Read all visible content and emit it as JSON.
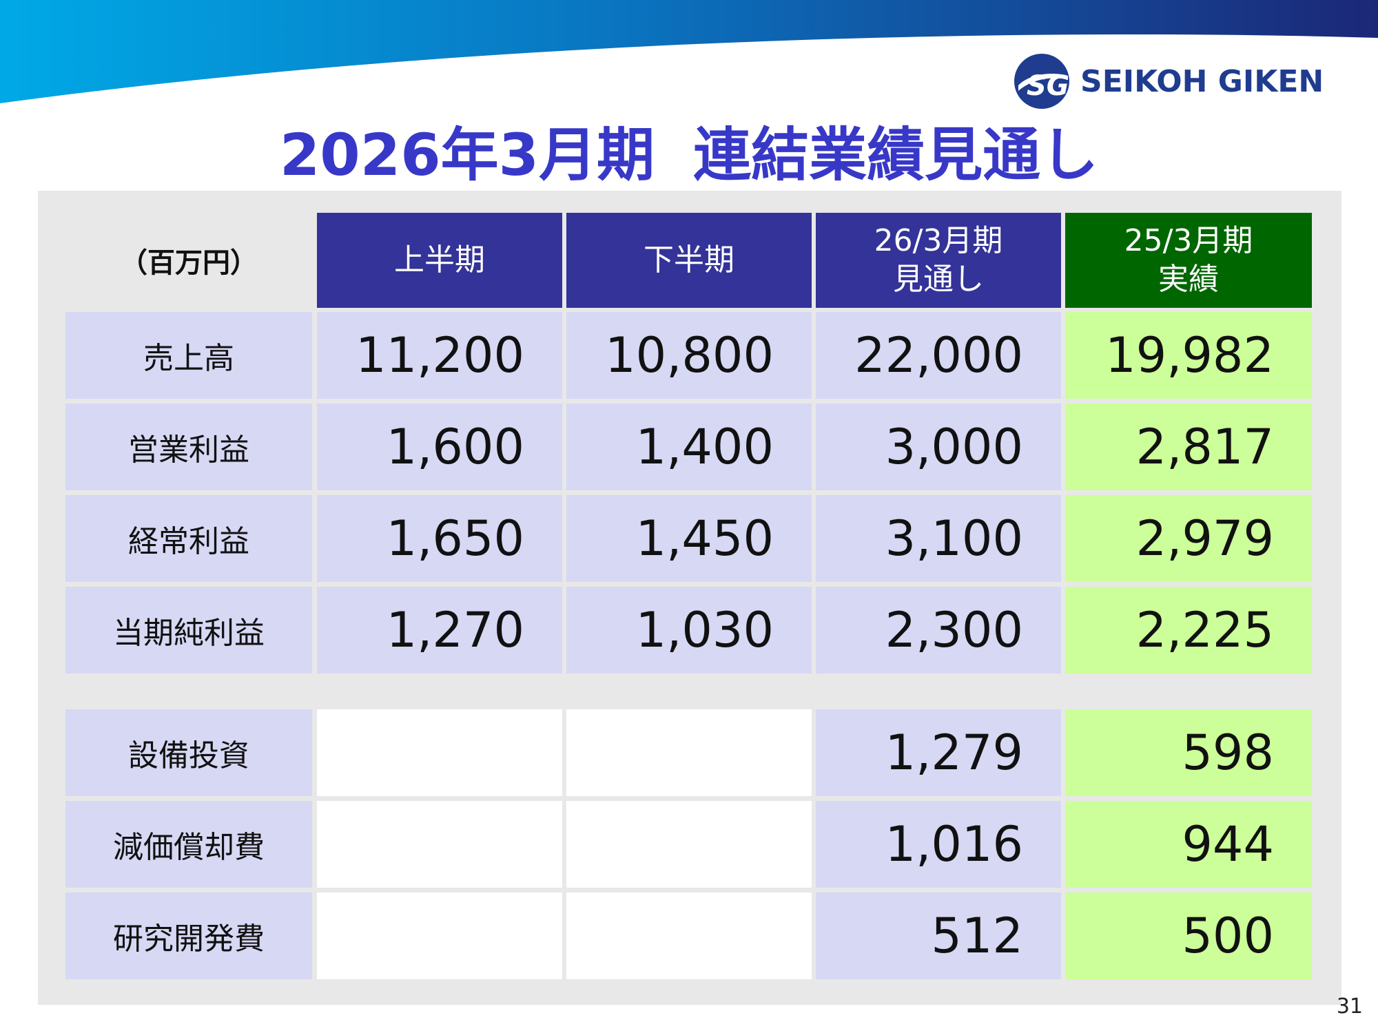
{
  "slide": {
    "title_part1": "2026年3月期",
    "title_part2": "連結業績見通し",
    "page_number": "31"
  },
  "logo": {
    "text": "SEIKOH GIKEN",
    "mark_letters": "SG",
    "colors": {
      "mark": "#1f3c8f",
      "accent": "#1e8fd6",
      "text": "#1f3c8f"
    }
  },
  "table": {
    "unit": "（百万円）",
    "columns": [
      {
        "line1": "上半期",
        "line2": ""
      },
      {
        "line1": "下半期",
        "line2": ""
      },
      {
        "line1": "26/3月期",
        "line2": "見通し"
      },
      {
        "line1": "25/3月期",
        "line2": "実績"
      }
    ],
    "main_rows": [
      {
        "label": "売上高",
        "values": [
          "11,200",
          "10,800",
          "22,000",
          "19,982"
        ]
      },
      {
        "label": "営業利益",
        "values": [
          "1,600",
          "1,400",
          "3,000",
          "2,817"
        ]
      },
      {
        "label": "経常利益",
        "values": [
          "1,650",
          "1,450",
          "3,100",
          "2,979"
        ]
      },
      {
        "label": "当期純利益",
        "values": [
          "1,270",
          "1,030",
          "2,300",
          "2,225"
        ]
      }
    ],
    "sub_rows": [
      {
        "label": "設備投資",
        "values": [
          "",
          "",
          "1,279",
          "598"
        ]
      },
      {
        "label": "減価償却費",
        "values": [
          "",
          "",
          "1,016",
          "944"
        ]
      },
      {
        "label": "研究開発費",
        "values": [
          "",
          "",
          "512",
          "500"
        ]
      }
    ]
  },
  "colors": {
    "header_blue": "#333399",
    "header_green": "#006600",
    "cell_lavender": "#d6d8f4",
    "cell_lime": "#ccff99",
    "title": "#3838c8",
    "panel": "#e8e8e8"
  }
}
